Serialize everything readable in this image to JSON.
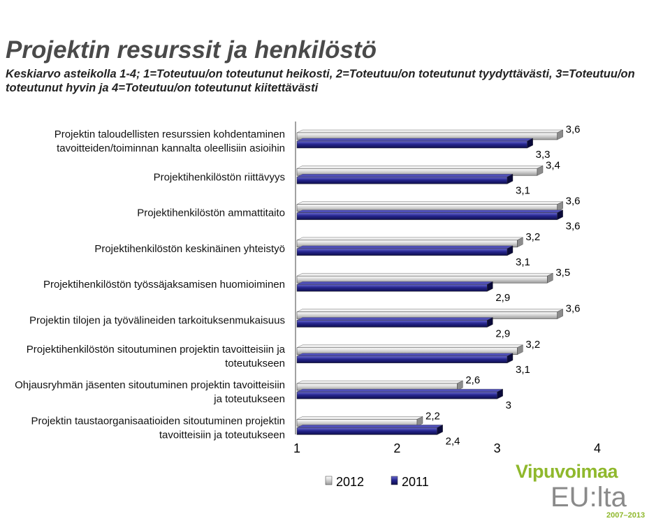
{
  "title": "Projektin resurssit ja henkilöstö",
  "subtitle": "Keskiarvo asteikolla 1-4; 1=Toteutuu/on toteutunut heikosti, 2=Toteutuu/on toteutunut tyydyttävästi, 3=Toteutuu/on toteutunut hyvin ja 4=Toteutuu/on toteutunut kiitettävästi",
  "chart_data": {
    "type": "bar",
    "orientation": "horizontal",
    "categories": [
      [
        "Projektin taloudellisten resurssien kohdentaminen",
        "tavoitteiden/toiminnan kannalta oleellisiin asioihin"
      ],
      [
        "Projektihenkilöstön riittävyys"
      ],
      [
        "Projektihenkilöstön ammattitaito"
      ],
      [
        "Projektihenkilöstön keskinäinen yhteistyö"
      ],
      [
        "Projektihenkilöstön työssäjaksamisen huomioiminen"
      ],
      [
        "Projektin tilojen ja työvälineiden tarkoituksenmukaisuus"
      ],
      [
        "Projektihenkilöstön sitoutuminen projektin tavoitteisiin ja",
        "toteutukseen"
      ],
      [
        "Ohjausryhmän jäsenten sitoutuminen projektin tavoitteisiin",
        "ja toteutukseen"
      ],
      [
        "Projektin taustaorganisaatioiden sitoutuminen projektin",
        "tavoitteisiin ja toteutukseen"
      ]
    ],
    "series": [
      {
        "name": "2012",
        "color": "#c8c8c8",
        "values": [
          3.6,
          3.4,
          3.6,
          3.2,
          3.5,
          3.6,
          3.2,
          2.6,
          2.2
        ],
        "labels": [
          "3,6",
          "3,4",
          "3,6",
          "3,2",
          "3,5",
          "3,6",
          "3,2",
          "2,6",
          "2,2"
        ]
      },
      {
        "name": "2011",
        "color": "#1f1f7a",
        "values": [
          3.3,
          3.1,
          3.6,
          3.1,
          2.9,
          2.9,
          3.1,
          3.0,
          2.4
        ],
        "labels": [
          "3,3",
          "3,1",
          "3,6",
          "3,1",
          "2,9",
          "2,9",
          "3,1",
          "3",
          "2,4"
        ]
      }
    ],
    "xlim": [
      1,
      4
    ],
    "xticks": [
      "1",
      "2",
      "3",
      "4"
    ],
    "legend": [
      "2012",
      "2011"
    ],
    "legend_position": "bottom",
    "grid": false
  },
  "logo": {
    "top": "Vipuvoimaa",
    "middle": "EU:lta",
    "bottom": "2007–2013"
  }
}
